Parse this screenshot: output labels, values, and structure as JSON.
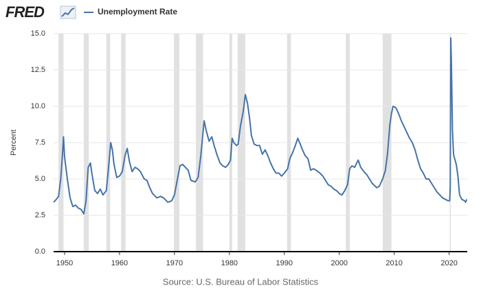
{
  "chart_data": {
    "type": "line",
    "logo": "FRED",
    "ylabel": "Percent",
    "source": "Source: U.S. Bureau of Labor Statistics",
    "x": [
      1948.0,
      1948.5,
      1948.9,
      1949.3,
      1949.6,
      1949.8,
      1950.0,
      1950.5,
      1951.0,
      1951.5,
      1952.0,
      1952.5,
      1953.0,
      1953.5,
      1953.9,
      1954.3,
      1954.7,
      1955.0,
      1955.5,
      1956.0,
      1956.5,
      1957.0,
      1957.6,
      1958.0,
      1958.4,
      1958.7,
      1959.0,
      1959.5,
      1960.0,
      1960.5,
      1961.0,
      1961.4,
      1961.8,
      1962.3,
      1962.8,
      1963.3,
      1963.8,
      1964.5,
      1965.0,
      1965.5,
      1966.0,
      1966.8,
      1967.5,
      1968.0,
      1968.8,
      1969.5,
      1970.0,
      1970.5,
      1971.0,
      1971.5,
      1972.0,
      1972.5,
      1973.0,
      1973.8,
      1974.3,
      1974.8,
      1975.4,
      1975.8,
      1976.3,
      1976.8,
      1977.3,
      1977.8,
      1978.3,
      1978.8,
      1979.3,
      1979.8,
      1980.2,
      1980.5,
      1980.8,
      1981.3,
      1981.6,
      1982.0,
      1982.5,
      1982.9,
      1983.3,
      1983.7,
      1984.0,
      1984.5,
      1985.0,
      1985.5,
      1986.0,
      1986.5,
      1987.0,
      1987.5,
      1988.0,
      1988.5,
      1989.0,
      1989.5,
      1990.0,
      1990.6,
      1991.0,
      1991.5,
      1992.0,
      1992.45,
      1992.9,
      1993.3,
      1993.8,
      1994.3,
      1994.8,
      1995.3,
      1995.8,
      1996.5,
      1997.0,
      1997.5,
      1998.0,
      1998.5,
      1999.0,
      1999.5,
      2000.0,
      2000.5,
      2001.0,
      2001.5,
      2001.9,
      2002.3,
      2002.8,
      2003.45,
      2003.9,
      2004.5,
      2005.0,
      2005.5,
      2006.0,
      2006.8,
      2007.3,
      2007.9,
      2008.4,
      2008.8,
      2009.2,
      2009.5,
      2009.8,
      2010.3,
      2010.8,
      2011.3,
      2011.8,
      2012.3,
      2012.8,
      2013.3,
      2013.8,
      2014.3,
      2014.8,
      2015.3,
      2015.8,
      2016.3,
      2016.8,
      2017.3,
      2017.8,
      2018.3,
      2018.8,
      2019.3,
      2019.8,
      2020.1,
      2020.2,
      2020.3,
      2020.4,
      2020.5,
      2020.6,
      2020.8,
      2021.0,
      2021.3,
      2021.6,
      2021.9,
      2022.3,
      2022.8,
      2023.0,
      2023.2
    ],
    "series": [
      {
        "name": "Unemployment Rate",
        "color": "#4572a7",
        "values": [
          3.4,
          3.6,
          3.8,
          5.0,
          6.6,
          7.9,
          6.5,
          5.0,
          3.7,
          3.1,
          3.2,
          3.0,
          2.9,
          2.6,
          3.5,
          5.8,
          6.1,
          5.3,
          4.2,
          4.0,
          4.3,
          3.9,
          4.2,
          5.8,
          7.5,
          7.0,
          6.0,
          5.1,
          5.2,
          5.5,
          6.6,
          7.1,
          6.2,
          5.5,
          5.8,
          5.7,
          5.5,
          5.0,
          4.9,
          4.4,
          4.0,
          3.7,
          3.8,
          3.7,
          3.4,
          3.5,
          3.9,
          4.9,
          5.9,
          6.0,
          5.8,
          5.6,
          4.9,
          4.8,
          5.1,
          6.6,
          9.0,
          8.3,
          7.6,
          7.9,
          7.2,
          6.6,
          6.1,
          5.9,
          5.8,
          6.0,
          6.3,
          7.8,
          7.5,
          7.3,
          7.4,
          8.6,
          9.6,
          10.8,
          10.2,
          9.1,
          8.0,
          7.4,
          7.3,
          7.3,
          6.7,
          7.0,
          6.6,
          6.1,
          5.7,
          5.4,
          5.4,
          5.2,
          5.4,
          5.7,
          6.4,
          6.8,
          7.3,
          7.8,
          7.4,
          7.0,
          6.6,
          6.4,
          5.6,
          5.7,
          5.6,
          5.4,
          5.2,
          4.9,
          4.6,
          4.5,
          4.3,
          4.2,
          4.0,
          3.9,
          4.2,
          4.6,
          5.7,
          5.9,
          5.8,
          6.3,
          5.8,
          5.5,
          5.3,
          5.0,
          4.7,
          4.4,
          4.5,
          5.0,
          5.6,
          6.8,
          8.7,
          9.5,
          10.0,
          9.9,
          9.5,
          9.0,
          8.6,
          8.2,
          7.8,
          7.5,
          7.0,
          6.3,
          5.7,
          5.4,
          5.0,
          5.0,
          4.7,
          4.4,
          4.1,
          3.9,
          3.7,
          3.6,
          3.5,
          3.5,
          4.4,
          14.7,
          13.2,
          11.0,
          8.4,
          6.7,
          6.4,
          6.0,
          5.2,
          3.9,
          3.6,
          3.5,
          3.4,
          3.6
        ]
      }
    ],
    "recessions": [
      [
        1948.9,
        1949.8
      ],
      [
        1953.5,
        1954.4
      ],
      [
        1957.6,
        1958.3
      ],
      [
        1960.3,
        1961.1
      ],
      [
        1969.9,
        1970.9
      ],
      [
        1973.9,
        1975.2
      ],
      [
        1980.0,
        1980.5
      ],
      [
        1981.5,
        1982.9
      ],
      [
        1990.5,
        1991.2
      ],
      [
        2001.2,
        2001.9
      ],
      [
        2007.9,
        2009.5
      ],
      [
        2020.1,
        2020.3
      ]
    ],
    "recession_color": "#e1e1e1",
    "xlim": [
      1948,
      2023.3
    ],
    "xticks": [
      1950,
      1960,
      1970,
      1980,
      1990,
      2000,
      2010,
      2020
    ],
    "ylim": [
      0,
      15
    ],
    "yticks": [
      {
        "value": 0,
        "label": "0.0"
      },
      2.5,
      {
        "value": 5,
        "label": "5.0"
      },
      7.5,
      {
        "value": 10,
        "label": "10.0"
      },
      12.5,
      {
        "value": 15,
        "label": "15.0"
      }
    ],
    "grid": true
  }
}
